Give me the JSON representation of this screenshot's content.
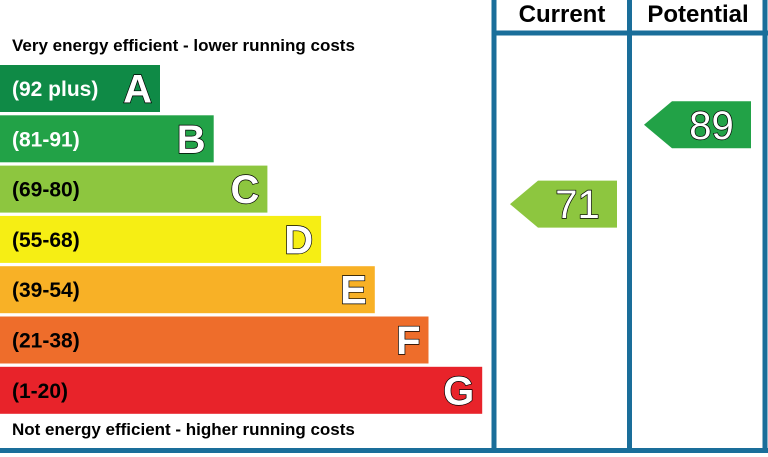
{
  "header": {
    "current_label": "Current",
    "potential_label": "Potential"
  },
  "notes": {
    "top": "Very energy efficient - lower running costs",
    "bottom": "Not energy efficient - higher running costs"
  },
  "colors": {
    "frame": "#1a6e9a",
    "text_dark": "#000000",
    "text_light": "#ffffff"
  },
  "chart_data": {
    "type": "bar",
    "bands": [
      {
        "letter": "A",
        "range": "(92 plus)",
        "min": 92,
        "max": 100,
        "color": "#0f8a46",
        "text_color": "#ffffff"
      },
      {
        "letter": "B",
        "range": "(81-91)",
        "min": 81,
        "max": 91,
        "color": "#22a247",
        "text_color": "#ffffff"
      },
      {
        "letter": "C",
        "range": "(69-80)",
        "min": 69,
        "max": 80,
        "color": "#8dc63f",
        "text_color": "#000000"
      },
      {
        "letter": "D",
        "range": "(55-68)",
        "min": 55,
        "max": 68,
        "color": "#f6ee14",
        "text_color": "#000000"
      },
      {
        "letter": "E",
        "range": "(39-54)",
        "min": 39,
        "max": 54,
        "color": "#f8b126",
        "text_color": "#000000"
      },
      {
        "letter": "F",
        "range": "(21-38)",
        "min": 21,
        "max": 38,
        "color": "#ee6d2b",
        "text_color": "#000000"
      },
      {
        "letter": "G",
        "range": "(1-20)",
        "min": 1,
        "max": 20,
        "color": "#e8232a",
        "text_color": "#000000"
      }
    ],
    "current": {
      "value": 71,
      "band": "C",
      "color": "#8dc63f"
    },
    "potential": {
      "value": 89,
      "band": "B",
      "color": "#22a247"
    }
  }
}
